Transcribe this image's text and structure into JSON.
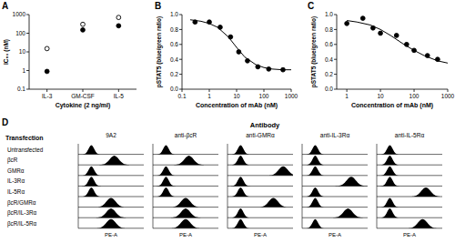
{
  "chart_data": [
    {
      "panel": "A",
      "type": "scatter",
      "ylabel": "IC₅₀ (nM)",
      "xlabel": "Cytokine (2 ng/ml)",
      "categories": [
        "IL-3",
        "GM-CSF",
        "IL-5"
      ],
      "log": "y",
      "ylim": [
        0.1,
        1000
      ],
      "yticks": [
        0.1,
        1,
        10,
        100,
        1000
      ],
      "series": [
        {
          "marker": "open",
          "color": "#000000",
          "values": [
            15,
            300,
            700
          ]
        },
        {
          "marker": "filled",
          "color": "#000000",
          "values": [
            0.9,
            150,
            250
          ]
        }
      ]
    },
    {
      "panel": "B",
      "type": "scatter",
      "xlabel": "Concentration of mAb (nM)",
      "ylabel": "pSTAT5 (blue/green ratio)",
      "log": "x",
      "xlim": [
        0.1,
        1000
      ],
      "xticks": [
        0.1,
        1,
        10,
        100,
        1000
      ],
      "ylim": [
        0,
        1
      ],
      "yticks": [
        {
          "value": 0,
          "label": "0.0"
        },
        0.2,
        0.4,
        0.6,
        0.8,
        {
          "value": 1,
          "label": "1.0"
        }
      ],
      "series": [
        {
          "type": "scatter",
          "marker": "filled",
          "color": "#000000",
          "x": [
            0.3,
            1,
            2.5,
            6,
            12,
            25,
            60,
            150,
            500
          ],
          "values": [
            0.9,
            0.9,
            0.83,
            0.7,
            0.5,
            0.38,
            0.3,
            0.27,
            0.26
          ]
        },
        {
          "type": "line",
          "line_style": "solid",
          "color": "#000000",
          "x": [
            0.2,
            0.5,
            1,
            2,
            5,
            10,
            20,
            50,
            100,
            200,
            500,
            1000
          ],
          "values": [
            0.93,
            0.91,
            0.88,
            0.83,
            0.7,
            0.56,
            0.43,
            0.33,
            0.29,
            0.27,
            0.26,
            0.26
          ]
        }
      ]
    },
    {
      "panel": "C",
      "type": "scatter",
      "xlabel": "Concentration of mAb (nM)",
      "ylabel": "pSTAT5 (blue/green ratio)",
      "log": "x",
      "xlim": [
        0.5,
        1000
      ],
      "xticks": [
        1,
        10,
        100,
        1000
      ],
      "ylim": [
        0,
        1
      ],
      "yticks": [
        {
          "value": 0,
          "label": "0.0"
        },
        0.2,
        0.4,
        0.6,
        0.8,
        {
          "value": 1,
          "label": "1.0"
        }
      ],
      "series": [
        {
          "type": "scatter",
          "marker": "filled",
          "color": "#000000",
          "x": [
            1,
            3,
            6,
            10,
            30,
            60,
            100,
            250,
            500
          ],
          "values": [
            0.88,
            0.95,
            0.82,
            0.75,
            0.72,
            0.6,
            0.52,
            0.45,
            0.4
          ]
        },
        {
          "type": "line",
          "line_style": "solid",
          "color": "#000000",
          "x": [
            1,
            2,
            5,
            10,
            20,
            50,
            100,
            200,
            500,
            1000
          ],
          "values": [
            0.92,
            0.9,
            0.86,
            0.8,
            0.72,
            0.6,
            0.52,
            0.45,
            0.38,
            0.35
          ]
        }
      ]
    },
    {
      "panel": "D",
      "type": "histogram_grid",
      "title": "Antibody",
      "row_title": "Transfection",
      "xlabel": "PE-A",
      "columns": [
        "9A2",
        "anti-βcR",
        "anti-GMRα",
        "anti-IL-3Rα",
        "anti-IL-5Rα"
      ],
      "rows": [
        "Untransfected",
        "βcR",
        "GMRα",
        "IL-3Rα",
        "IL-5Rα",
        "βcR/GMRα",
        "βcR/IL-3Rα",
        "βcR/IL-5Rα"
      ],
      "color": "#000000",
      "peaks": [
        [
          0.2,
          0.2,
          0.2,
          0.2,
          0.2
        ],
        [
          0.55,
          0.55,
          0.2,
          0.2,
          0.2
        ],
        [
          0.2,
          0.2,
          0.85,
          0.2,
          0.2
        ],
        [
          0.2,
          0.2,
          0.2,
          0.75,
          0.2
        ],
        [
          0.2,
          0.2,
          0.2,
          0.2,
          0.75
        ],
        [
          0.5,
          0.5,
          0.7,
          0.2,
          0.2
        ],
        [
          0.5,
          0.5,
          0.2,
          0.7,
          0.2
        ],
        [
          0.5,
          0.5,
          0.2,
          0.2,
          0.7
        ]
      ]
    }
  ]
}
